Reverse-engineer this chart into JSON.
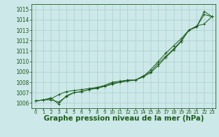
{
  "background_color": "#cce8e8",
  "grid_color": "#aacece",
  "line_color": "#1a5c1a",
  "title": "Graphe pression niveau de la mer (hPa)",
  "x_hours": [
    0,
    1,
    2,
    3,
    4,
    5,
    6,
    7,
    8,
    9,
    10,
    11,
    12,
    13,
    14,
    15,
    16,
    17,
    18,
    19,
    20,
    21,
    22,
    23
  ],
  "series1": [
    1006.2,
    1006.3,
    1006.3,
    1006.1,
    1006.6,
    1007.0,
    1007.1,
    1007.3,
    1007.5,
    1007.7,
    1008.0,
    1008.1,
    1008.2,
    1008.2,
    1008.6,
    1009.0,
    1009.8,
    1010.5,
    1011.2,
    1012.0,
    1013.0,
    1013.3,
    1014.5,
    1014.3
  ],
  "series2": [
    1006.2,
    1006.3,
    1006.4,
    1006.8,
    1007.1,
    1007.2,
    1007.3,
    1007.4,
    1007.5,
    1007.6,
    1007.8,
    1008.0,
    1008.1,
    1008.2,
    1008.5,
    1009.2,
    1010.0,
    1010.8,
    1011.5,
    1012.2,
    1013.0,
    1013.4,
    1013.6,
    1014.3
  ],
  "series3": [
    1006.2,
    1006.3,
    1006.5,
    1005.9,
    1006.7,
    1007.0,
    1007.1,
    1007.3,
    1007.4,
    1007.6,
    1007.9,
    1008.0,
    1008.2,
    1008.2,
    1008.5,
    1008.9,
    1009.6,
    1010.4,
    1011.1,
    1011.9,
    1013.0,
    1013.3,
    1014.8,
    1014.3
  ],
  "ylim_min": 1005.5,
  "ylim_max": 1015.5,
  "yticks": [
    1006,
    1007,
    1008,
    1009,
    1010,
    1011,
    1012,
    1013,
    1014,
    1015
  ],
  "title_fontsize": 7.5,
  "tick_fontsize": 5.5
}
